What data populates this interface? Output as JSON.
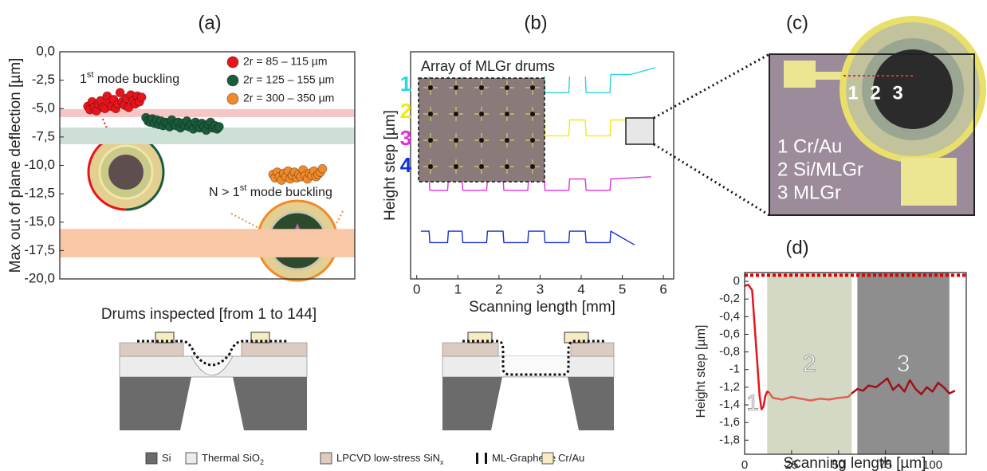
{
  "chart_data": [
    {
      "type": "scatter",
      "title": "(a)",
      "y_label": "Max out of plane deflection [µm]",
      "x_label": "Drums inspected [from 1 to 144]",
      "xlim": [
        -12,
        125
      ],
      "ylim": [
        -20,
        0
      ],
      "yticks": [
        {
          "value": 0,
          "label": "0,0"
        },
        {
          "value": -2.5,
          "label": "-2,5"
        },
        {
          "value": -5,
          "label": "-5,0"
        },
        {
          "value": -7.5,
          "label": "-7,5"
        },
        {
          "value": -10,
          "label": "-10,0"
        },
        {
          "value": -12.5,
          "label": "-12,5"
        },
        {
          "value": -15,
          "label": "-15,0"
        },
        {
          "value": -17.5,
          "label": "-17,5"
        },
        {
          "value": -20,
          "label": "-20,0"
        }
      ],
      "bands": [
        {
          "range": [
            -5.05,
            -5.75
          ],
          "color": "#f6c6c6"
        },
        {
          "range": [
            -6.67,
            -8.14
          ],
          "color": "#cde0d6"
        },
        {
          "range": [
            -15.6,
            -18.1
          ],
          "color": "#f8c7a6"
        }
      ],
      "annotations": [
        [
          "1",
          "st",
          " mode buckling"
        ],
        [
          "N > 1",
          "st",
          " mode buckling"
        ]
      ],
      "series": [
        {
          "name": "2r = 85 – 115 µm",
          "color": "#e8141c",
          "x": [
            1,
            2,
            3,
            4,
            5,
            6,
            7,
            8,
            9,
            10,
            11,
            12,
            13,
            14,
            15,
            16,
            17,
            18,
            19,
            20,
            21,
            22,
            23,
            24,
            25,
            26
          ],
          "values": [
            -4.8,
            -5.1,
            -4.4,
            -4.9,
            -5.2,
            -4.6,
            -4.3,
            -4.9,
            -5.0,
            -3.9,
            -4.5,
            -4.8,
            -4.2,
            -5.0,
            -4.6,
            -3.6,
            -4.4,
            -4.7,
            -4.1,
            -4.9,
            -3.8,
            -4.3,
            -4.6,
            -3.9,
            -4.4,
            -4.0
          ]
        },
        {
          "name": "2r = 125 – 155 µm",
          "color": "#1a5c3c",
          "x": [
            28,
            29,
            30,
            31,
            32,
            33,
            34,
            35,
            36,
            37,
            38,
            39,
            40,
            41,
            42,
            43,
            44,
            45,
            46,
            47,
            48,
            49,
            50,
            51,
            52,
            53,
            54,
            55,
            56,
            57,
            58,
            59,
            60,
            61,
            62
          ],
          "values": [
            -5.8,
            -6.1,
            -6.2,
            -5.9,
            -6.3,
            -6.0,
            -6.4,
            -6.1,
            -6.5,
            -6.2,
            -6.3,
            -6.6,
            -6.0,
            -6.4,
            -6.5,
            -6.2,
            -6.7,
            -6.3,
            -6.5,
            -6.1,
            -6.6,
            -6.4,
            -6.8,
            -6.2,
            -6.5,
            -6.7,
            -6.3,
            -6.6,
            -6.9,
            -6.4,
            -6.2,
            -6.7,
            -6.5,
            -6.8,
            -6.6
          ]
        },
        {
          "name": "2r = 300 – 350 µm",
          "color": "#f08a2a",
          "x": [
            87,
            88,
            89,
            90,
            91,
            92,
            93,
            94,
            95,
            96,
            97,
            98,
            99,
            100,
            101,
            102,
            103,
            104,
            105,
            106,
            107,
            108,
            109,
            110
          ],
          "values": [
            -10.8,
            -11.1,
            -10.6,
            -11.0,
            -11.3,
            -10.7,
            -11.0,
            -10.5,
            -11.2,
            -10.9,
            -10.6,
            -11.1,
            -10.8,
            -11.0,
            -10.4,
            -10.9,
            -11.2,
            -10.7,
            -10.9,
            -10.5,
            -11.0,
            -10.8,
            -10.6,
            -10.3
          ]
        }
      ]
    },
    {
      "type": "line",
      "title": "(b)",
      "y_label": "Height step [µm]",
      "x_label": "Scanning length [mm]",
      "inset_title": "Array of MLGr drums",
      "xlim": [
        -0.15,
        6.25
      ],
      "ylim": [
        0,
        10
      ],
      "xticks": [
        0,
        1,
        2,
        3,
        4,
        5,
        6
      ],
      "series": [
        {
          "name": "1",
          "color": "#2ad4e0",
          "x": [
            0.1,
            0.3,
            0.32,
            0.75,
            0.77,
            1.1,
            1.12,
            1.7,
            1.72,
            2.1,
            2.12,
            2.7,
            2.72,
            3.1,
            3.12,
            3.7,
            3.72,
            4.1,
            4.12,
            4.7,
            4.72,
            5.2,
            5.8
          ],
          "values": [
            9.0,
            9.0,
            8.2,
            8.2,
            9.0,
            9.0,
            8.2,
            8.2,
            9.0,
            9.0,
            8.2,
            8.2,
            9.0,
            9.0,
            8.2,
            8.2,
            9.0,
            9.0,
            8.2,
            8.2,
            9.0,
            9.0,
            9.3
          ]
        },
        {
          "name": "2",
          "color": "#f2ea10",
          "x": [
            0.1,
            0.3,
            0.32,
            0.75,
            0.77,
            1.1,
            1.12,
            1.7,
            1.72,
            2.1,
            2.12,
            2.7,
            2.72,
            3.1,
            3.12,
            3.7,
            3.72,
            4.1,
            4.12,
            4.7,
            4.72,
            5.1
          ],
          "values": [
            7.0,
            7.0,
            6.3,
            6.3,
            7.0,
            7.0,
            6.3,
            6.3,
            7.0,
            7.0,
            6.3,
            6.3,
            7.0,
            7.0,
            6.3,
            6.3,
            7.0,
            7.0,
            6.3,
            6.3,
            7.0,
            7.0
          ]
        },
        {
          "name": "3",
          "color": "#e030d8",
          "x": [
            0.1,
            0.3,
            0.32,
            0.75,
            0.77,
            1.1,
            1.12,
            1.7,
            1.72,
            2.1,
            2.12,
            2.7,
            2.72,
            3.1,
            3.12,
            3.7,
            3.72,
            4.1,
            4.12,
            4.7,
            4.72,
            5.7
          ],
          "values": [
            4.4,
            4.4,
            3.9,
            3.9,
            4.4,
            4.4,
            3.9,
            3.9,
            4.4,
            4.4,
            3.9,
            3.9,
            4.4,
            4.4,
            3.9,
            3.9,
            4.4,
            4.4,
            3.9,
            3.9,
            4.4,
            4.5
          ]
        },
        {
          "name": "4",
          "color": "#1030d8",
          "x": [
            0.1,
            0.3,
            0.32,
            0.75,
            0.77,
            1.1,
            1.12,
            1.7,
            1.72,
            2.1,
            2.12,
            2.7,
            2.72,
            3.1,
            3.12,
            3.7,
            3.72,
            4.1,
            4.12,
            4.7,
            4.72,
            5.3
          ],
          "values": [
            2.1,
            2.1,
            1.6,
            1.6,
            2.1,
            2.1,
            1.6,
            1.6,
            2.1,
            2.1,
            1.6,
            1.6,
            2.1,
            2.1,
            1.6,
            1.6,
            2.1,
            2.1,
            1.6,
            1.6,
            2.1,
            1.5
          ]
        }
      ]
    },
    {
      "type": "line",
      "title": "(d)",
      "y_label": "Height step [µm]",
      "x_label": "Scanning length [µm]",
      "xlim": [
        0,
        118
      ],
      "ylim": [
        -1.96,
        0.1
      ],
      "xticks": [
        0,
        25,
        50,
        75,
        100
      ],
      "yticks": [
        0,
        {
          "value": -0.2,
          "label": "-0,2"
        },
        {
          "value": -0.4,
          "label": "-0,4"
        },
        {
          "value": -0.6,
          "label": "-0,6"
        },
        {
          "value": -0.8,
          "label": "-0,8"
        },
        {
          "value": -1,
          "label": "-1"
        },
        {
          "value": -1.2,
          "label": "-1,2"
        },
        {
          "value": -1.4,
          "label": "-1,4"
        },
        {
          "value": -1.6,
          "label": "-1,6"
        },
        {
          "value": -1.8,
          "label": "-1,8"
        }
      ],
      "ref_line": {
        "value": 0.07,
        "color": "#e00000"
      },
      "regions": [
        {
          "label": "2",
          "range": [
            12,
            57
          ],
          "color": "#d3d9c5"
        },
        {
          "label": "3",
          "range": [
            60,
            109
          ],
          "color": "#8e8e8e"
        }
      ],
      "annotations": [
        "1"
      ],
      "series": [
        {
          "color": "#e8141c",
          "x": [
            0,
            2,
            4,
            6,
            8,
            9,
            10,
            11,
            12,
            13
          ],
          "values": [
            -0.05,
            -0.04,
            -0.1,
            -0.7,
            -1.3,
            -1.45,
            -1.42,
            -1.3,
            -1.25,
            -1.26
          ]
        },
        {
          "color": "#e06050",
          "x": [
            13,
            15,
            20,
            25,
            30,
            35,
            40,
            45,
            50,
            55,
            57
          ],
          "values": [
            -1.26,
            -1.32,
            -1.34,
            -1.31,
            -1.33,
            -1.35,
            -1.33,
            -1.34,
            -1.32,
            -1.31,
            -1.27
          ]
        },
        {
          "color": "#a0101c",
          "x": [
            57,
            60,
            63,
            66,
            70,
            73,
            76,
            79,
            82,
            85,
            88,
            91,
            94,
            97,
            100,
            103,
            106,
            109,
            112
          ],
          "values": [
            -1.27,
            -1.22,
            -1.24,
            -1.18,
            -1.2,
            -1.15,
            -1.1,
            -1.23,
            -1.17,
            -1.25,
            -1.12,
            -1.22,
            -1.28,
            -1.2,
            -1.25,
            -1.15,
            -1.2,
            -1.27,
            -1.24
          ]
        }
      ]
    }
  ],
  "panel_c": {
    "title": "(c)",
    "markers": [
      "1",
      "2",
      "3"
    ],
    "legend": [
      "1 Cr/Au",
      "2 Si/MLGr",
      "3 MLGr"
    ]
  },
  "materials": [
    {
      "name": "Si"
    },
    {
      "name": "Thermal SiO",
      "sub": "2"
    },
    {
      "name": "LPCVD low-stress SiN",
      "sub": "x"
    },
    {
      "name": "ML-Graphene"
    },
    {
      "name": "Cr/Au"
    }
  ]
}
